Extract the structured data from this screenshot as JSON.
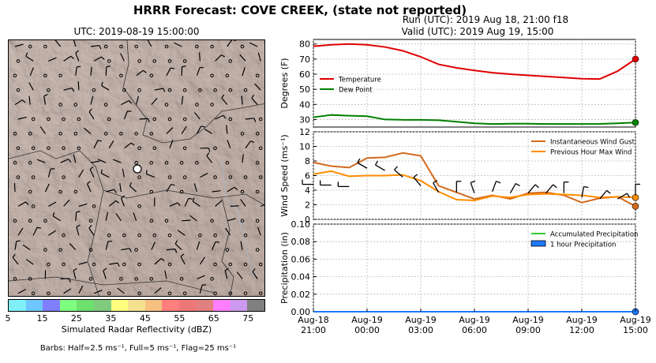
{
  "title": "HRRR Forecast: COVE CREEK, (state not reported)",
  "map": {
    "title": "UTC: 2019-08-19 15:00:00",
    "colorbar": {
      "label": "Simulated Radar Reflectivity (dBZ)",
      "ticks": [
        "5",
        "15",
        "25",
        "35",
        "45",
        "55",
        "65",
        "75"
      ],
      "colors": [
        "#7ff0f8",
        "#6ec8ff",
        "#7f7fff",
        "#7fff7f",
        "#6ee06e",
        "#7fcc7f",
        "#ffff7f",
        "#f5e090",
        "#f5c080",
        "#ff7f7f",
        "#ee7777",
        "#e08080",
        "#ff7fff",
        "#cc99ee",
        "#808080"
      ]
    },
    "barb_note": "Barbs: Half=2.5 ms⁻¹, Full=5 ms⁻¹, Flag=25 ms⁻¹",
    "colors": {
      "terrain": "#c4b3ab",
      "station": "#ffffff"
    }
  },
  "run": "Run (UTC): 2019 Aug 18, 21:00 f18",
  "valid": "Valid (UTC): 2019 Aug 19, 15:00",
  "chart_data": [
    {
      "type": "line",
      "x": [
        0,
        1,
        2,
        3,
        4,
        5,
        6,
        7,
        8,
        9,
        10,
        11,
        12,
        13,
        14,
        15,
        16,
        17,
        18
      ],
      "xlim": [
        0,
        18
      ],
      "ylabel": "Degrees (F)",
      "ylim": [
        25,
        83
      ],
      "yticks": [
        30,
        40,
        50,
        60,
        70,
        80
      ],
      "legend": "left",
      "series": [
        {
          "name": "Temperature",
          "color": "#e00000",
          "values": [
            78.5,
            79.5,
            80,
            79.5,
            78,
            75.5,
            71.5,
            66.5,
            64.2,
            62.5,
            61,
            60,
            59.2,
            58.5,
            57.8,
            57,
            56.8,
            62,
            70
          ]
        },
        {
          "name": "Dew Point",
          "color": "#008000",
          "values": [
            31.5,
            33,
            32.5,
            32.2,
            30,
            29.8,
            29.8,
            29.5,
            28.5,
            27.5,
            27,
            27.2,
            27.2,
            27,
            27,
            27,
            27.1,
            27.5,
            28
          ]
        }
      ]
    },
    {
      "type": "line",
      "x": [
        0,
        1,
        2,
        3,
        4,
        5,
        6,
        7,
        8,
        9,
        10,
        11,
        12,
        13,
        14,
        15,
        16,
        17,
        18
      ],
      "xlim": [
        0,
        18
      ],
      "ylabel": "Wind Speed (ms⁻¹)",
      "ylim": [
        0,
        12
      ],
      "yticks": [
        0,
        2,
        4,
        6,
        8,
        10,
        12
      ],
      "legend": "top-right",
      "series": [
        {
          "name": "Instantaneous Wind Gust",
          "color": "#d2691e",
          "values": [
            7.8,
            7.3,
            7.1,
            8.4,
            8.5,
            9.1,
            8.7,
            4.6,
            3.7,
            2.8,
            3.3,
            2.8,
            3.6,
            3.7,
            3.3,
            2.3,
            2.9,
            3.1,
            1.8
          ]
        },
        {
          "name": "Previous Hour Max Wind",
          "color": "#ff8c00",
          "values": [
            6.2,
            6.6,
            5.9,
            6.0,
            6.0,
            6.1,
            5.3,
            3.8,
            2.7,
            2.6,
            3.2,
            3.0,
            3.4,
            3.5,
            3.4,
            3.3,
            3.0,
            3.1,
            3.0
          ]
        }
      ],
      "barbs": {
        "y": [
          4.8,
          4.7,
          4.5,
          7.0,
          6.7,
          5.8,
          4.6,
          3.7,
          3.7,
          3.6,
          3.8,
          3.6,
          3.6,
          3.6,
          3.6,
          3.0,
          2.8,
          2.8,
          3.3
        ],
        "dir": [
          270,
          270,
          270,
          300,
          300,
          310,
          320,
          330,
          0,
          340,
          20,
          30,
          40,
          40,
          0,
          10,
          40,
          60,
          0
        ]
      }
    },
    {
      "type": "line",
      "x": [
        0,
        1,
        2,
        3,
        4,
        5,
        6,
        7,
        8,
        9,
        10,
        11,
        12,
        13,
        14,
        15,
        16,
        17,
        18
      ],
      "xlim": [
        0,
        18
      ],
      "ylabel": "Precipitation (in)",
      "ylim": [
        0,
        0.1
      ],
      "yticks": [
        "0.00",
        "0.02",
        "0.04",
        "0.06",
        "0.08",
        "0.10"
      ],
      "legend": "top-right",
      "series": [
        {
          "name": "Accumulated Precipitation",
          "color": "#33cc33",
          "values": [
            0,
            0,
            0,
            0,
            0,
            0,
            0,
            0,
            0,
            0,
            0,
            0,
            0,
            0,
            0,
            0,
            0,
            0,
            0
          ]
        },
        {
          "name": "1 hour Precipitation",
          "color": "#1e78ff",
          "values": [
            0,
            0,
            0,
            0,
            0,
            0,
            0,
            0,
            0,
            0,
            0,
            0,
            0,
            0,
            0,
            0,
            0,
            0,
            0
          ]
        }
      ]
    }
  ],
  "xticks": [
    {
      "line1": "Aug-18",
      "line2": "21:00"
    },
    {
      "line1": "Aug-19",
      "line2": "00:00"
    },
    {
      "line1": "Aug-19",
      "line2": "03:00"
    },
    {
      "line1": "Aug-19",
      "line2": "06:00"
    },
    {
      "line1": "Aug-19",
      "line2": "09:00"
    },
    {
      "line1": "Aug-19",
      "line2": "12:00"
    },
    {
      "line1": "Aug-19",
      "line2": "15:00"
    }
  ]
}
